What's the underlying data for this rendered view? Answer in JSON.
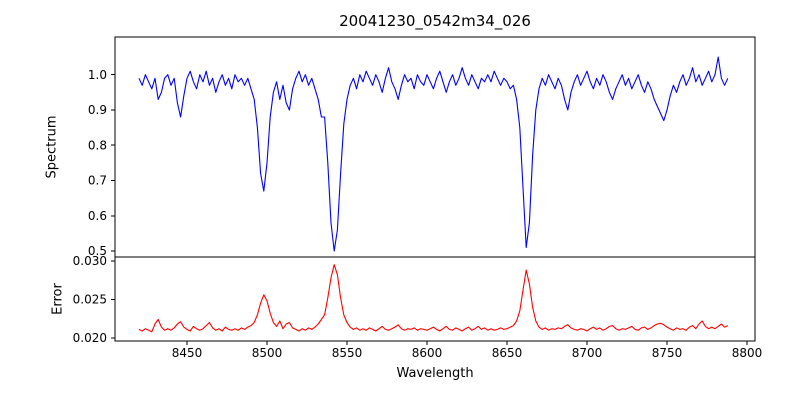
{
  "figure": {
    "title": "20041230_0542m34_026",
    "background": "#ffffff"
  },
  "x_axis": {
    "label": "Wavelength",
    "lim": [
      8405,
      8805
    ],
    "ticks": [
      8450,
      8500,
      8550,
      8600,
      8650,
      8700,
      8750,
      8800
    ],
    "tick_labels": [
      "8450",
      "8500",
      "8550",
      "8600",
      "8650",
      "8700",
      "8750",
      "8800"
    ]
  },
  "chart_data": [
    {
      "type": "line",
      "name": "spectrum",
      "title": "20041230_0542m34_026",
      "xlabel": "Wavelength",
      "ylabel": "Spectrum",
      "color": "#0000ff",
      "xlim": [
        8405,
        8805
      ],
      "ylim": [
        0.483,
        1.107
      ],
      "y_ticks": [
        1.0,
        0.9,
        0.8,
        0.7,
        0.6,
        0.5
      ],
      "y_tick_labels": [
        "1.0",
        "0.9",
        "0.8",
        "0.7",
        "0.6",
        "0.5"
      ],
      "x_start": 8420,
      "x_step": 2,
      "values": [
        0.99,
        0.97,
        1.0,
        0.98,
        0.96,
        0.99,
        0.93,
        0.95,
        0.99,
        1.0,
        0.97,
        0.99,
        0.92,
        0.88,
        0.94,
        0.99,
        1.01,
        0.98,
        0.96,
        1.0,
        0.98,
        1.01,
        0.97,
        0.99,
        0.95,
        0.98,
        1.0,
        0.97,
        0.99,
        0.96,
        1.0,
        0.98,
        0.99,
        0.97,
        0.99,
        0.96,
        0.93,
        0.85,
        0.72,
        0.67,
        0.75,
        0.88,
        0.95,
        0.98,
        0.93,
        0.97,
        0.92,
        0.9,
        0.96,
        0.99,
        1.01,
        0.98,
        1.0,
        0.97,
        0.99,
        0.96,
        0.93,
        0.88,
        0.88,
        0.75,
        0.58,
        0.5,
        0.56,
        0.72,
        0.86,
        0.93,
        0.97,
        0.99,
        0.96,
        1.0,
        0.98,
        1.01,
        0.99,
        0.97,
        1.0,
        0.98,
        0.95,
        0.99,
        1.02,
        0.98,
        0.96,
        0.93,
        0.97,
        1.0,
        0.98,
        0.99,
        0.96,
        1.0,
        0.98,
        0.97,
        1.0,
        0.98,
        0.96,
        0.99,
        1.01,
        0.98,
        0.95,
        0.98,
        1.0,
        0.97,
        0.99,
        1.02,
        0.99,
        0.97,
        1.0,
        0.98,
        0.96,
        0.99,
        0.98,
        1.0,
        0.98,
        1.01,
        0.99,
        0.97,
        0.99,
        0.98,
        0.96,
        0.97,
        0.93,
        0.85,
        0.68,
        0.51,
        0.58,
        0.77,
        0.9,
        0.96,
        0.99,
        0.97,
        1.0,
        0.98,
        0.96,
        0.99,
        0.97,
        0.93,
        0.9,
        0.95,
        0.98,
        1.0,
        0.97,
        0.99,
        1.01,
        0.98,
        0.96,
        0.99,
        0.97,
        1.0,
        0.98,
        0.95,
        0.93,
        0.96,
        0.98,
        1.0,
        0.97,
        0.99,
        0.96,
        0.98,
        1.0,
        0.97,
        0.95,
        0.98,
        0.96,
        0.93,
        0.91,
        0.89,
        0.87,
        0.9,
        0.94,
        0.97,
        0.95,
        0.98,
        1.0,
        0.97,
        0.99,
        1.02,
        0.98,
        1.0,
        0.97,
        0.99,
        1.01,
        0.98,
        1.0,
        1.05,
        0.99,
        0.97,
        0.99
      ]
    },
    {
      "type": "line",
      "name": "error",
      "title": "20041230_0542m34_026",
      "xlabel": "Wavelength",
      "ylabel": "Error",
      "color": "#ff0000",
      "xlim": [
        8405,
        8805
      ],
      "ylim": [
        0.0196,
        0.0305
      ],
      "y_ticks": [
        0.03,
        0.025,
        0.02
      ],
      "y_tick_labels": [
        "0.030",
        "0.025",
        "0.020"
      ],
      "x_start": 8420,
      "x_step": 2,
      "values": [
        0.0211,
        0.0209,
        0.0212,
        0.021,
        0.0208,
        0.0218,
        0.0224,
        0.0214,
        0.021,
        0.0212,
        0.021,
        0.0213,
        0.0218,
        0.0221,
        0.0214,
        0.0211,
        0.0209,
        0.0215,
        0.0212,
        0.021,
        0.0212,
        0.0216,
        0.022,
        0.0213,
        0.021,
        0.0212,
        0.0209,
        0.0214,
        0.0211,
        0.021,
        0.0212,
        0.021,
        0.0213,
        0.0211,
        0.0214,
        0.0216,
        0.022,
        0.023,
        0.0245,
        0.0256,
        0.0248,
        0.0232,
        0.022,
        0.0215,
        0.0222,
        0.0212,
        0.0218,
        0.022,
        0.0213,
        0.0211,
        0.0209,
        0.0212,
        0.021,
        0.0213,
        0.0211,
        0.0214,
        0.0218,
        0.0224,
        0.023,
        0.0252,
        0.0278,
        0.0295,
        0.0282,
        0.0252,
        0.023,
        0.022,
        0.0214,
        0.0211,
        0.0213,
        0.021,
        0.0212,
        0.021,
        0.0213,
        0.0211,
        0.0209,
        0.0212,
        0.0215,
        0.0211,
        0.021,
        0.0212,
        0.0214,
        0.0217,
        0.0212,
        0.021,
        0.0212,
        0.0211,
        0.0213,
        0.021,
        0.0212,
        0.0211,
        0.021,
        0.0212,
        0.0214,
        0.0211,
        0.0209,
        0.0212,
        0.0215,
        0.0211,
        0.021,
        0.0213,
        0.0211,
        0.0209,
        0.0212,
        0.0214,
        0.021,
        0.0212,
        0.0215,
        0.0211,
        0.0213,
        0.021,
        0.0212,
        0.021,
        0.0211,
        0.0213,
        0.0211,
        0.0212,
        0.0214,
        0.0216,
        0.0222,
        0.0235,
        0.0262,
        0.0288,
        0.027,
        0.024,
        0.0222,
        0.0214,
        0.0211,
        0.0213,
        0.021,
        0.0212,
        0.0211,
        0.0213,
        0.0212,
        0.0215,
        0.0217,
        0.0213,
        0.0211,
        0.021,
        0.0212,
        0.0211,
        0.0209,
        0.0212,
        0.0214,
        0.0211,
        0.0213,
        0.021,
        0.0212,
        0.0215,
        0.0216,
        0.0212,
        0.021,
        0.0212,
        0.0211,
        0.0213,
        0.0215,
        0.0211,
        0.021,
        0.0213,
        0.0214,
        0.0211,
        0.0213,
        0.0216,
        0.0218,
        0.0219,
        0.0217,
        0.0214,
        0.0212,
        0.021,
        0.0213,
        0.0211,
        0.0212,
        0.021,
        0.0214,
        0.0216,
        0.0212,
        0.0218,
        0.0222,
        0.0215,
        0.0212,
        0.0214,
        0.0212,
        0.0215,
        0.0218,
        0.0214,
        0.0216
      ]
    }
  ]
}
